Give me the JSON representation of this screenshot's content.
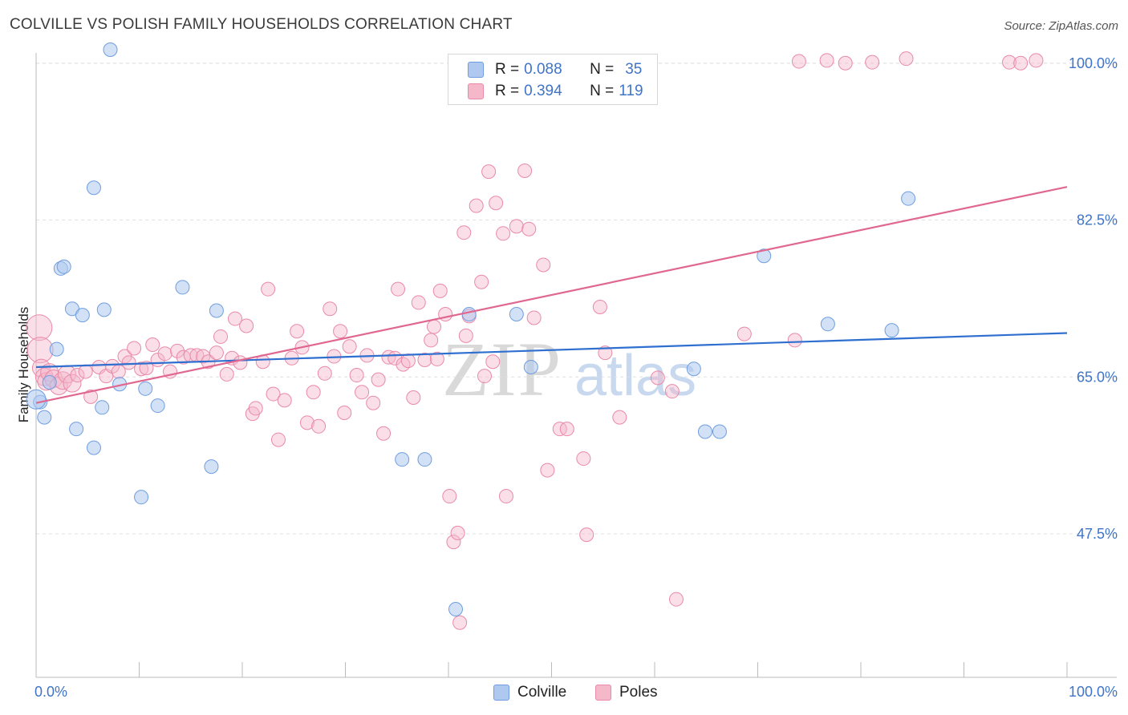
{
  "title": "COLVILLE VS POLISH FAMILY HOUSEHOLDS CORRELATION CHART",
  "source": "Source: ZipAtlas.com",
  "watermark": {
    "zip": "ZIP",
    "atlas": "atlas"
  },
  "colors": {
    "colville_fill": "#aec8f0",
    "colville_stroke": "#6f9ee0",
    "colville_line": "#2f6fcf",
    "poles_fill": "#f5b8cb",
    "poles_stroke": "#e98aa8",
    "poles_line": "#e06890",
    "grid": "#e0e0e0",
    "axis": "#bbbbbb",
    "tick_label": "#3f74c9"
  },
  "legend": {
    "rows": [
      {
        "r_label": "R =",
        "r_value": "0.088",
        "n_label": "N =",
        "n_value": "35"
      },
      {
        "r_label": "R =",
        "r_value": "0.394",
        "n_label": "N =",
        "n_value": "119"
      }
    ]
  },
  "bottom_legend": [
    "Colville",
    "Poles"
  ],
  "chart_data": {
    "type": "scatter",
    "title": "COLVILLE VS POLISH FAMILY HOUSEHOLDS CORRELATION CHART",
    "xlabel": "",
    "ylabel": "Family Households",
    "xlim": [
      0,
      100
    ],
    "ylim": [
      31.5,
      101.5
    ],
    "y_ticks": [
      47.5,
      65.0,
      82.5,
      100.0
    ],
    "y_tick_labels": [
      "47.5%",
      "65.0%",
      "82.5%",
      "100.0%"
    ],
    "x_tick_labels": [
      "0.0%",
      "100.0%"
    ],
    "x_ticks_minor": [
      0,
      10,
      20,
      30,
      40,
      50,
      60,
      70,
      80,
      90,
      100
    ],
    "grid": true,
    "series": [
      {
        "name": "Colville",
        "trend": {
          "x": [
            0,
            100
          ],
          "y": [
            66.1,
            69.9
          ]
        },
        "points": [
          [
            7.2,
            101.5
          ],
          [
            5.6,
            86.1
          ],
          [
            2.4,
            77.1
          ],
          [
            2.7,
            77.3
          ],
          [
            14.2,
            75.0
          ],
          [
            3.5,
            72.6
          ],
          [
            6.6,
            72.5
          ],
          [
            4.5,
            71.9
          ],
          [
            17.5,
            72.4
          ],
          [
            0.4,
            62.2
          ],
          [
            2.0,
            68.1
          ],
          [
            1.3,
            64.4
          ],
          [
            8.1,
            64.2
          ],
          [
            10.6,
            63.7
          ],
          [
            6.4,
            61.6
          ],
          [
            11.8,
            61.8
          ],
          [
            3.9,
            59.2
          ],
          [
            5.6,
            57.1
          ],
          [
            17.0,
            55.0
          ],
          [
            10.2,
            51.6
          ],
          [
            0.8,
            60.5
          ],
          [
            35.5,
            55.8
          ],
          [
            37.7,
            55.8
          ],
          [
            42.0,
            72.0
          ],
          [
            46.6,
            72.0
          ],
          [
            48.0,
            66.1
          ],
          [
            63.8,
            65.9
          ],
          [
            66.3,
            58.9
          ],
          [
            64.9,
            58.9
          ],
          [
            70.6,
            78.5
          ],
          [
            76.8,
            70.9
          ],
          [
            83.0,
            70.2
          ],
          [
            84.6,
            84.9
          ],
          [
            40.7,
            39.1
          ],
          [
            0,
            62.5
          ]
        ]
      },
      {
        "name": "Poles",
        "trend": {
          "x": [
            0,
            100
          ],
          "y": [
            62.1,
            86.2
          ]
        },
        "points": [
          [
            0.3,
            70.5
          ],
          [
            0.4,
            68.0
          ],
          [
            0.5,
            66.0
          ],
          [
            0.8,
            65.0
          ],
          [
            1.0,
            64.5
          ],
          [
            1.3,
            65.5
          ],
          [
            1.7,
            64.8
          ],
          [
            2.2,
            64.0
          ],
          [
            2.6,
            64.6
          ],
          [
            3.0,
            65.3
          ],
          [
            3.5,
            64.3
          ],
          [
            4.0,
            65.2
          ],
          [
            4.8,
            65.6
          ],
          [
            5.3,
            62.8
          ],
          [
            6.1,
            66.1
          ],
          [
            6.8,
            65.1
          ],
          [
            7.4,
            66.2
          ],
          [
            8.0,
            65.6
          ],
          [
            8.6,
            67.3
          ],
          [
            9.0,
            66.6
          ],
          [
            9.5,
            68.2
          ],
          [
            10.2,
            65.9
          ],
          [
            10.7,
            66.0
          ],
          [
            11.3,
            68.6
          ],
          [
            11.8,
            66.9
          ],
          [
            12.5,
            67.6
          ],
          [
            13.0,
            65.6
          ],
          [
            13.7,
            67.9
          ],
          [
            14.3,
            67.2
          ],
          [
            15.0,
            67.4
          ],
          [
            15.6,
            67.4
          ],
          [
            16.2,
            67.3
          ],
          [
            16.7,
            66.7
          ],
          [
            17.5,
            67.7
          ],
          [
            17.9,
            69.5
          ],
          [
            18.5,
            65.3
          ],
          [
            19.0,
            67.1
          ],
          [
            19.3,
            71.5
          ],
          [
            19.8,
            66.6
          ],
          [
            20.4,
            70.7
          ],
          [
            21.0,
            60.9
          ],
          [
            21.3,
            61.5
          ],
          [
            22.0,
            66.7
          ],
          [
            22.5,
            74.8
          ],
          [
            23.0,
            63.1
          ],
          [
            23.5,
            58.0
          ],
          [
            24.1,
            62.4
          ],
          [
            24.8,
            67.1
          ],
          [
            25.3,
            70.1
          ],
          [
            25.8,
            68.3
          ],
          [
            26.3,
            59.9
          ],
          [
            26.9,
            63.3
          ],
          [
            27.4,
            59.5
          ],
          [
            28.0,
            65.4
          ],
          [
            28.5,
            72.6
          ],
          [
            28.9,
            67.3
          ],
          [
            29.5,
            70.1
          ],
          [
            29.9,
            61.0
          ],
          [
            30.4,
            68.4
          ],
          [
            31.1,
            65.2
          ],
          [
            31.6,
            63.3
          ],
          [
            32.1,
            67.4
          ],
          [
            32.7,
            62.1
          ],
          [
            33.2,
            64.7
          ],
          [
            33.7,
            58.7
          ],
          [
            34.2,
            67.2
          ],
          [
            34.8,
            67.1
          ],
          [
            35.1,
            74.8
          ],
          [
            35.6,
            66.4
          ],
          [
            36.1,
            66.8
          ],
          [
            36.6,
            62.7
          ],
          [
            37.1,
            73.3
          ],
          [
            37.7,
            66.9
          ],
          [
            38.3,
            69.1
          ],
          [
            38.6,
            70.6
          ],
          [
            38.9,
            67.0
          ],
          [
            39.2,
            74.6
          ],
          [
            39.7,
            72.0
          ],
          [
            40.1,
            51.7
          ],
          [
            40.5,
            46.6
          ],
          [
            40.9,
            47.6
          ],
          [
            41.1,
            37.6
          ],
          [
            41.7,
            69.6
          ],
          [
            41.5,
            81.1
          ],
          [
            42.0,
            71.8
          ],
          [
            42.7,
            84.1
          ],
          [
            43.2,
            75.6
          ],
          [
            43.9,
            87.9
          ],
          [
            43.5,
            65.1
          ],
          [
            44.3,
            66.7
          ],
          [
            44.6,
            84.4
          ],
          [
            45.3,
            81.0
          ],
          [
            45.6,
            51.7
          ],
          [
            46.6,
            81.8
          ],
          [
            47.4,
            88.0
          ],
          [
            47.8,
            81.5
          ],
          [
            48.3,
            71.6
          ],
          [
            49.2,
            77.5
          ],
          [
            49.6,
            54.6
          ],
          [
            50.8,
            59.2
          ],
          [
            51.5,
            59.2
          ],
          [
            53.1,
            55.9
          ],
          [
            53.4,
            47.4
          ],
          [
            54.7,
            72.8
          ],
          [
            55.2,
            67.7
          ],
          [
            56.6,
            60.5
          ],
          [
            60.3,
            64.9
          ],
          [
            61.7,
            63.4
          ],
          [
            62.1,
            40.2
          ],
          [
            68.7,
            69.8
          ],
          [
            73.6,
            69.1
          ],
          [
            74.0,
            100.2
          ],
          [
            76.7,
            100.3
          ],
          [
            78.5,
            100.0
          ],
          [
            81.1,
            100.1
          ],
          [
            84.4,
            100.5
          ],
          [
            94.4,
            100.1
          ],
          [
            95.5,
            100.0
          ],
          [
            97.0,
            100.3
          ]
        ]
      }
    ]
  }
}
